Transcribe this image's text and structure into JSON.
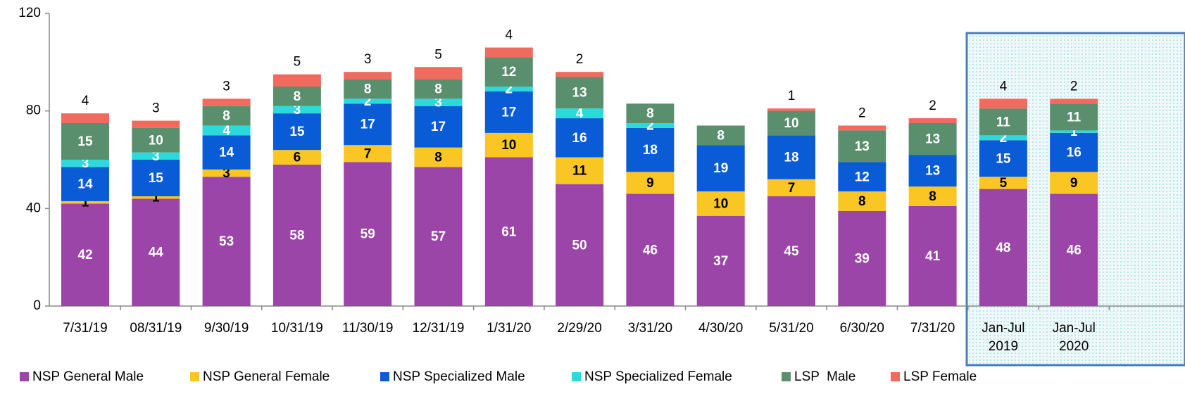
{
  "chart_data": {
    "type": "stacked_bar",
    "categories": [
      "7/31/19",
      "08/31/19",
      "9/30/19",
      "10/31/19",
      "11/30/19",
      "12/31/19",
      "1/31/20",
      "2/29/20",
      "3/31/20",
      "4/30/20",
      "5/31/20",
      "6/30/20",
      "7/31/20",
      "Jan-Jul 2019",
      "Jan-Jul 2020"
    ],
    "series": [
      {
        "name": "NSP General Male",
        "color": "#9b45a8",
        "values": [
          42,
          44,
          53,
          58,
          59,
          57,
          61,
          50,
          46,
          37,
          45,
          39,
          41,
          48,
          46
        ]
      },
      {
        "name": "NSP General Female",
        "color": "#f9c623",
        "values": [
          1,
          1,
          3,
          6,
          7,
          8,
          10,
          11,
          9,
          10,
          7,
          8,
          8,
          5,
          9
        ]
      },
      {
        "name": "NSP Specialized Male",
        "color": "#0a5bd6",
        "values": [
          14,
          15,
          14,
          15,
          17,
          17,
          17,
          16,
          18,
          19,
          18,
          12,
          13,
          15,
          16
        ]
      },
      {
        "name": "NSP Specialized Female",
        "color": "#2dd9db",
        "values": [
          3,
          3,
          4,
          3,
          2,
          3,
          2,
          4,
          2,
          null,
          null,
          null,
          null,
          2,
          1
        ]
      },
      {
        "name": "LSP  Male",
        "color": "#5a8f6e",
        "values": [
          15,
          10,
          8,
          8,
          8,
          8,
          12,
          13,
          8,
          8,
          10,
          13,
          13,
          11,
          11
        ]
      },
      {
        "name": "LSP Female",
        "color": "#f06a5e",
        "values": [
          4,
          3,
          3,
          5,
          3,
          5,
          4,
          2,
          null,
          null,
          1,
          2,
          2,
          4,
          2
        ]
      }
    ],
    "ylim": [
      0,
      120
    ],
    "yticks": [
      0,
      40,
      80,
      120
    ],
    "grid": false,
    "legend": "bottom"
  }
}
